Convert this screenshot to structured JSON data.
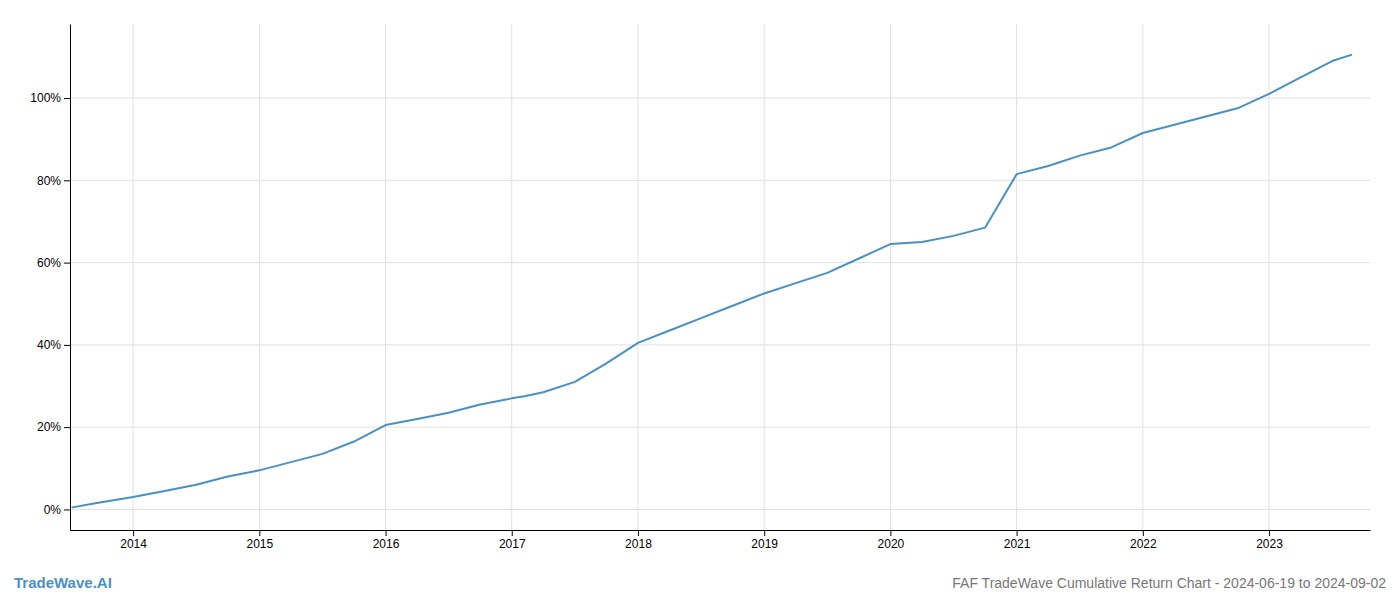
{
  "chart_data": {
    "type": "line",
    "title": "FAF TradeWave Cumulative Return Chart - 2024-06-19 to 2024-09-02",
    "annotations": [
      "TradeWave.AI"
    ],
    "x": [
      2013.52,
      2013.7,
      2014.0,
      2014.25,
      2014.5,
      2014.75,
      2015.0,
      2015.25,
      2015.5,
      2015.75,
      2016.0,
      2016.25,
      2016.5,
      2016.75,
      2017.0,
      2017.1,
      2017.25,
      2017.5,
      2017.75,
      2018.0,
      2018.25,
      2018.5,
      2018.75,
      2019.0,
      2019.25,
      2019.5,
      2019.75,
      2020.0,
      2020.25,
      2020.5,
      2020.75,
      2021.0,
      2021.25,
      2021.5,
      2021.75,
      2022.0,
      2022.25,
      2022.5,
      2022.75,
      2023.0,
      2023.25,
      2023.5,
      2023.65
    ],
    "values": [
      0.5,
      1.5,
      3.0,
      4.5,
      6.0,
      8.0,
      9.5,
      11.5,
      13.5,
      16.5,
      20.5,
      22.0,
      23.5,
      25.5,
      27.0,
      27.5,
      28.5,
      31.0,
      35.5,
      40.5,
      43.5,
      46.5,
      49.5,
      52.5,
      55.0,
      57.5,
      61.0,
      64.5,
      65.0,
      66.5,
      68.5,
      81.5,
      83.5,
      86.0,
      88.0,
      91.5,
      93.5,
      95.5,
      97.5,
      101.0,
      105.0,
      109.0,
      110.5
    ],
    "color": "#4a90c4",
    "xlim": [
      2013.5,
      2023.8
    ],
    "xticks": [
      2014,
      2015,
      2016,
      2017,
      2018,
      2019,
      2020,
      2021,
      2022,
      2023
    ],
    "ylim": [
      -5,
      118
    ],
    "yticks": [
      {
        "value": 0,
        "label": "0%"
      },
      {
        "value": 20,
        "label": "20%"
      },
      {
        "value": 40,
        "label": "40%"
      },
      {
        "value": 60,
        "label": "60%"
      },
      {
        "value": 80,
        "label": "80%"
      },
      {
        "value": 100,
        "label": "100%"
      }
    ],
    "grid": true
  }
}
